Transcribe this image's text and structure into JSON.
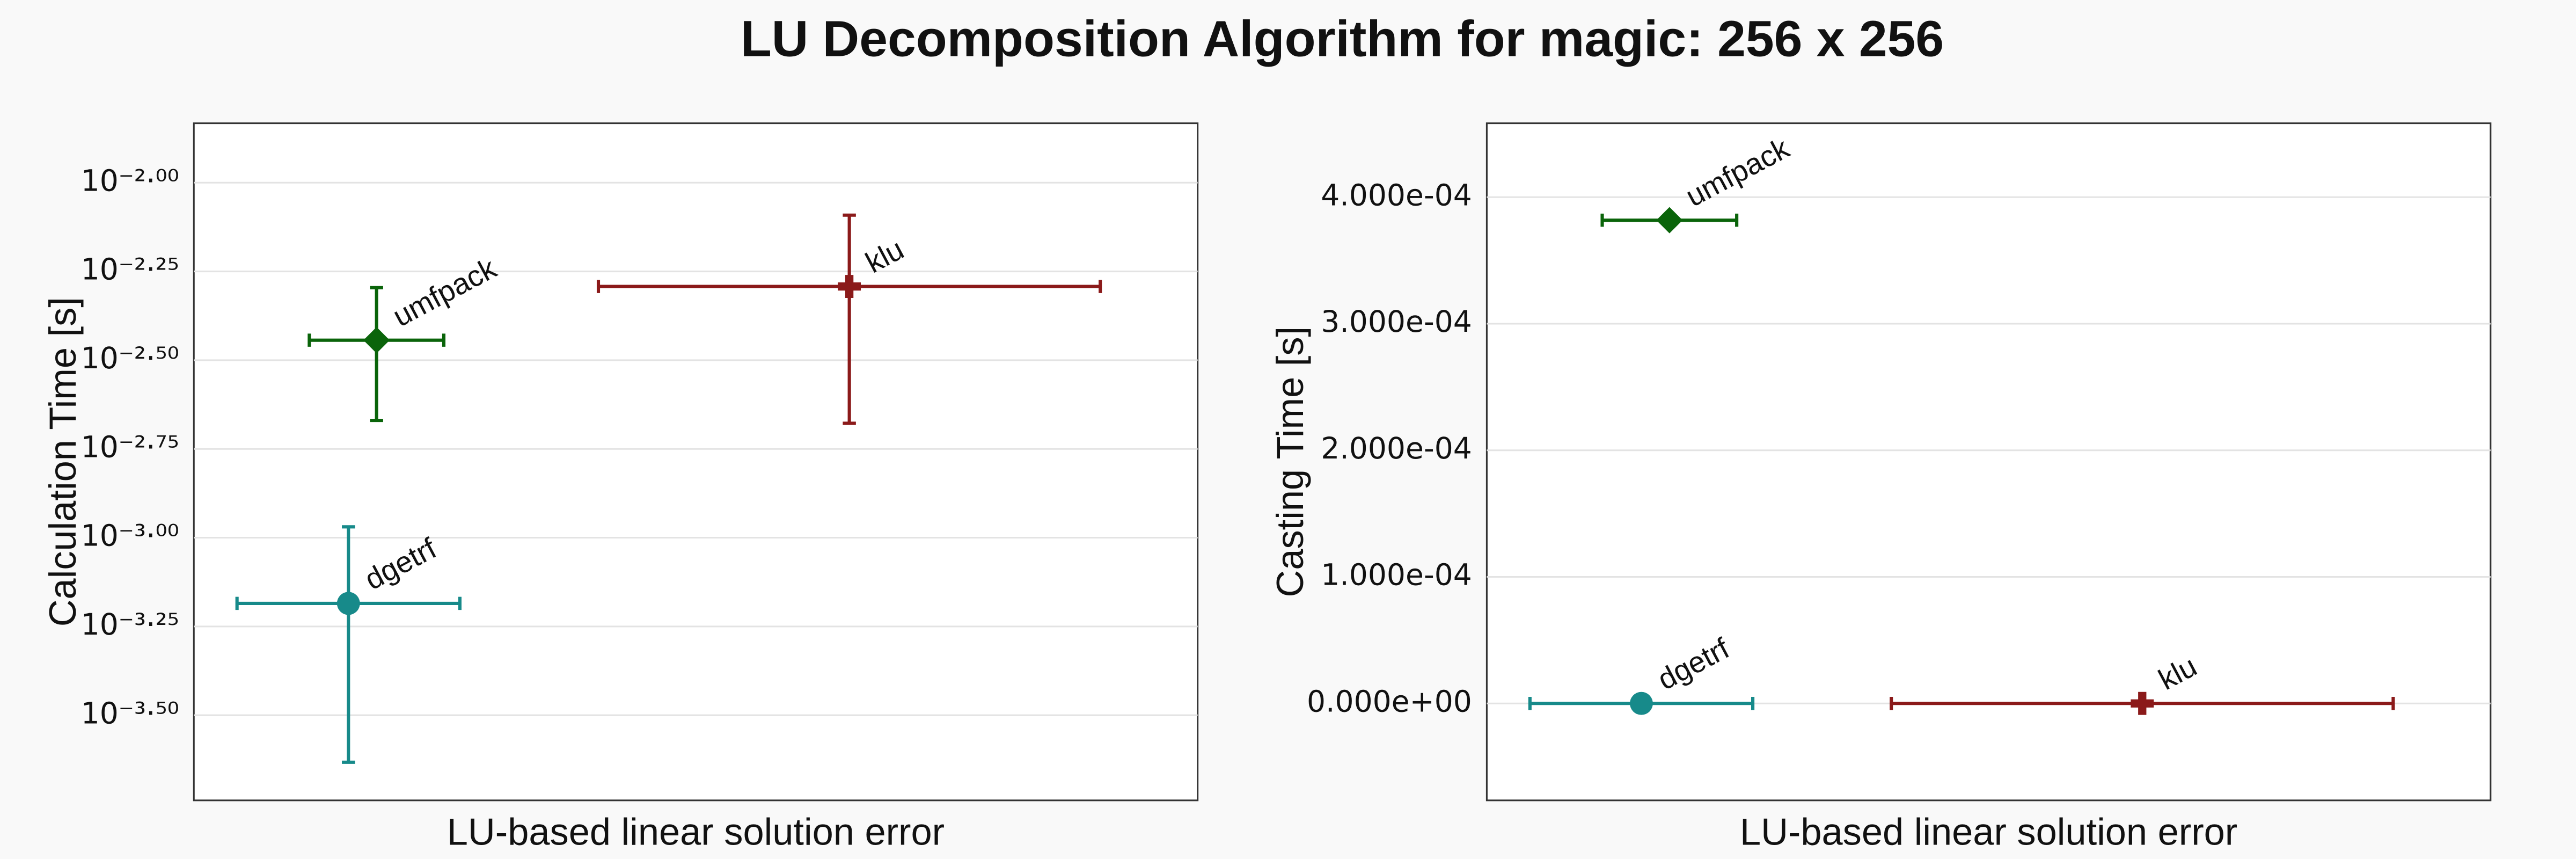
{
  "title": "LU Decomposition Algorithm for magic: 256 x 256",
  "chart_data": [
    {
      "type": "scatter",
      "x_label": "LU-based linear solution error",
      "y_label": "Calculation Time [s]",
      "log_y": true,
      "grid": true,
      "xlim": [
        0,
        10
      ],
      "ylim": [
        0.000182,
        0.0147
      ],
      "yticks": [
        {
          "value": 0.01,
          "label": "10⁻²·⁰⁰"
        },
        {
          "value": 0.005623,
          "label": "10⁻²·²⁵"
        },
        {
          "value": 0.003162,
          "label": "10⁻²·⁵⁰"
        },
        {
          "value": 0.001778,
          "label": "10⁻²·⁷⁵"
        },
        {
          "value": 0.001,
          "label": "10⁻³·⁰⁰"
        },
        {
          "value": 0.0005623,
          "label": "10⁻³·²⁵"
        },
        {
          "value": 0.0003162,
          "label": "10⁻³·⁵⁰"
        }
      ],
      "series": [
        {
          "name": "dgetrf",
          "color": "#178a8a",
          "marker": "circle",
          "x": [
            1.54
          ],
          "values": [
            0.000653
          ],
          "x_error": [
            1.11
          ],
          "y_error": [
            0.00042
          ]
        },
        {
          "name": "umfpack",
          "color": "#0a640a",
          "marker": "diamond",
          "x": [
            1.82
          ],
          "values": [
            0.0036
          ],
          "x_error": [
            0.67
          ],
          "y_error": [
            0.00146
          ]
        },
        {
          "name": "klu",
          "color": "#8b1a1a",
          "marker": "plus",
          "x": [
            6.53
          ],
          "values": [
            0.0051
          ],
          "x_error": [
            2.5
          ],
          "y_error": [
            0.003
          ]
        }
      ]
    },
    {
      "type": "scatter",
      "x_label": "LU-based linear solution error",
      "y_label": "Casting Time [s]",
      "log_y": false,
      "grid": true,
      "xlim": [
        0,
        10
      ],
      "ylim": [
        -7.66e-05,
        0.0004584
      ],
      "yticks": [
        {
          "value": 0,
          "label": "0.000e+00"
        },
        {
          "value": 0.0001,
          "label": "1.000e-04"
        },
        {
          "value": 0.0002,
          "label": "2.000e-04"
        },
        {
          "value": 0.0003,
          "label": "3.000e-04"
        },
        {
          "value": 0.0004,
          "label": "4.000e-04"
        }
      ],
      "series": [
        {
          "name": "dgetrf",
          "color": "#178a8a",
          "marker": "circle",
          "x": [
            1.54
          ],
          "values": [
            0
          ],
          "x_error": [
            1.11
          ]
        },
        {
          "name": "umfpack",
          "color": "#0a640a",
          "marker": "diamond",
          "x": [
            1.82
          ],
          "values": [
            0.0003818
          ],
          "x_error": [
            0.67
          ]
        },
        {
          "name": "klu",
          "color": "#8b1a1a",
          "marker": "plus",
          "x": [
            6.53
          ],
          "values": [
            0
          ],
          "x_error": [
            2.5
          ]
        }
      ]
    }
  ]
}
